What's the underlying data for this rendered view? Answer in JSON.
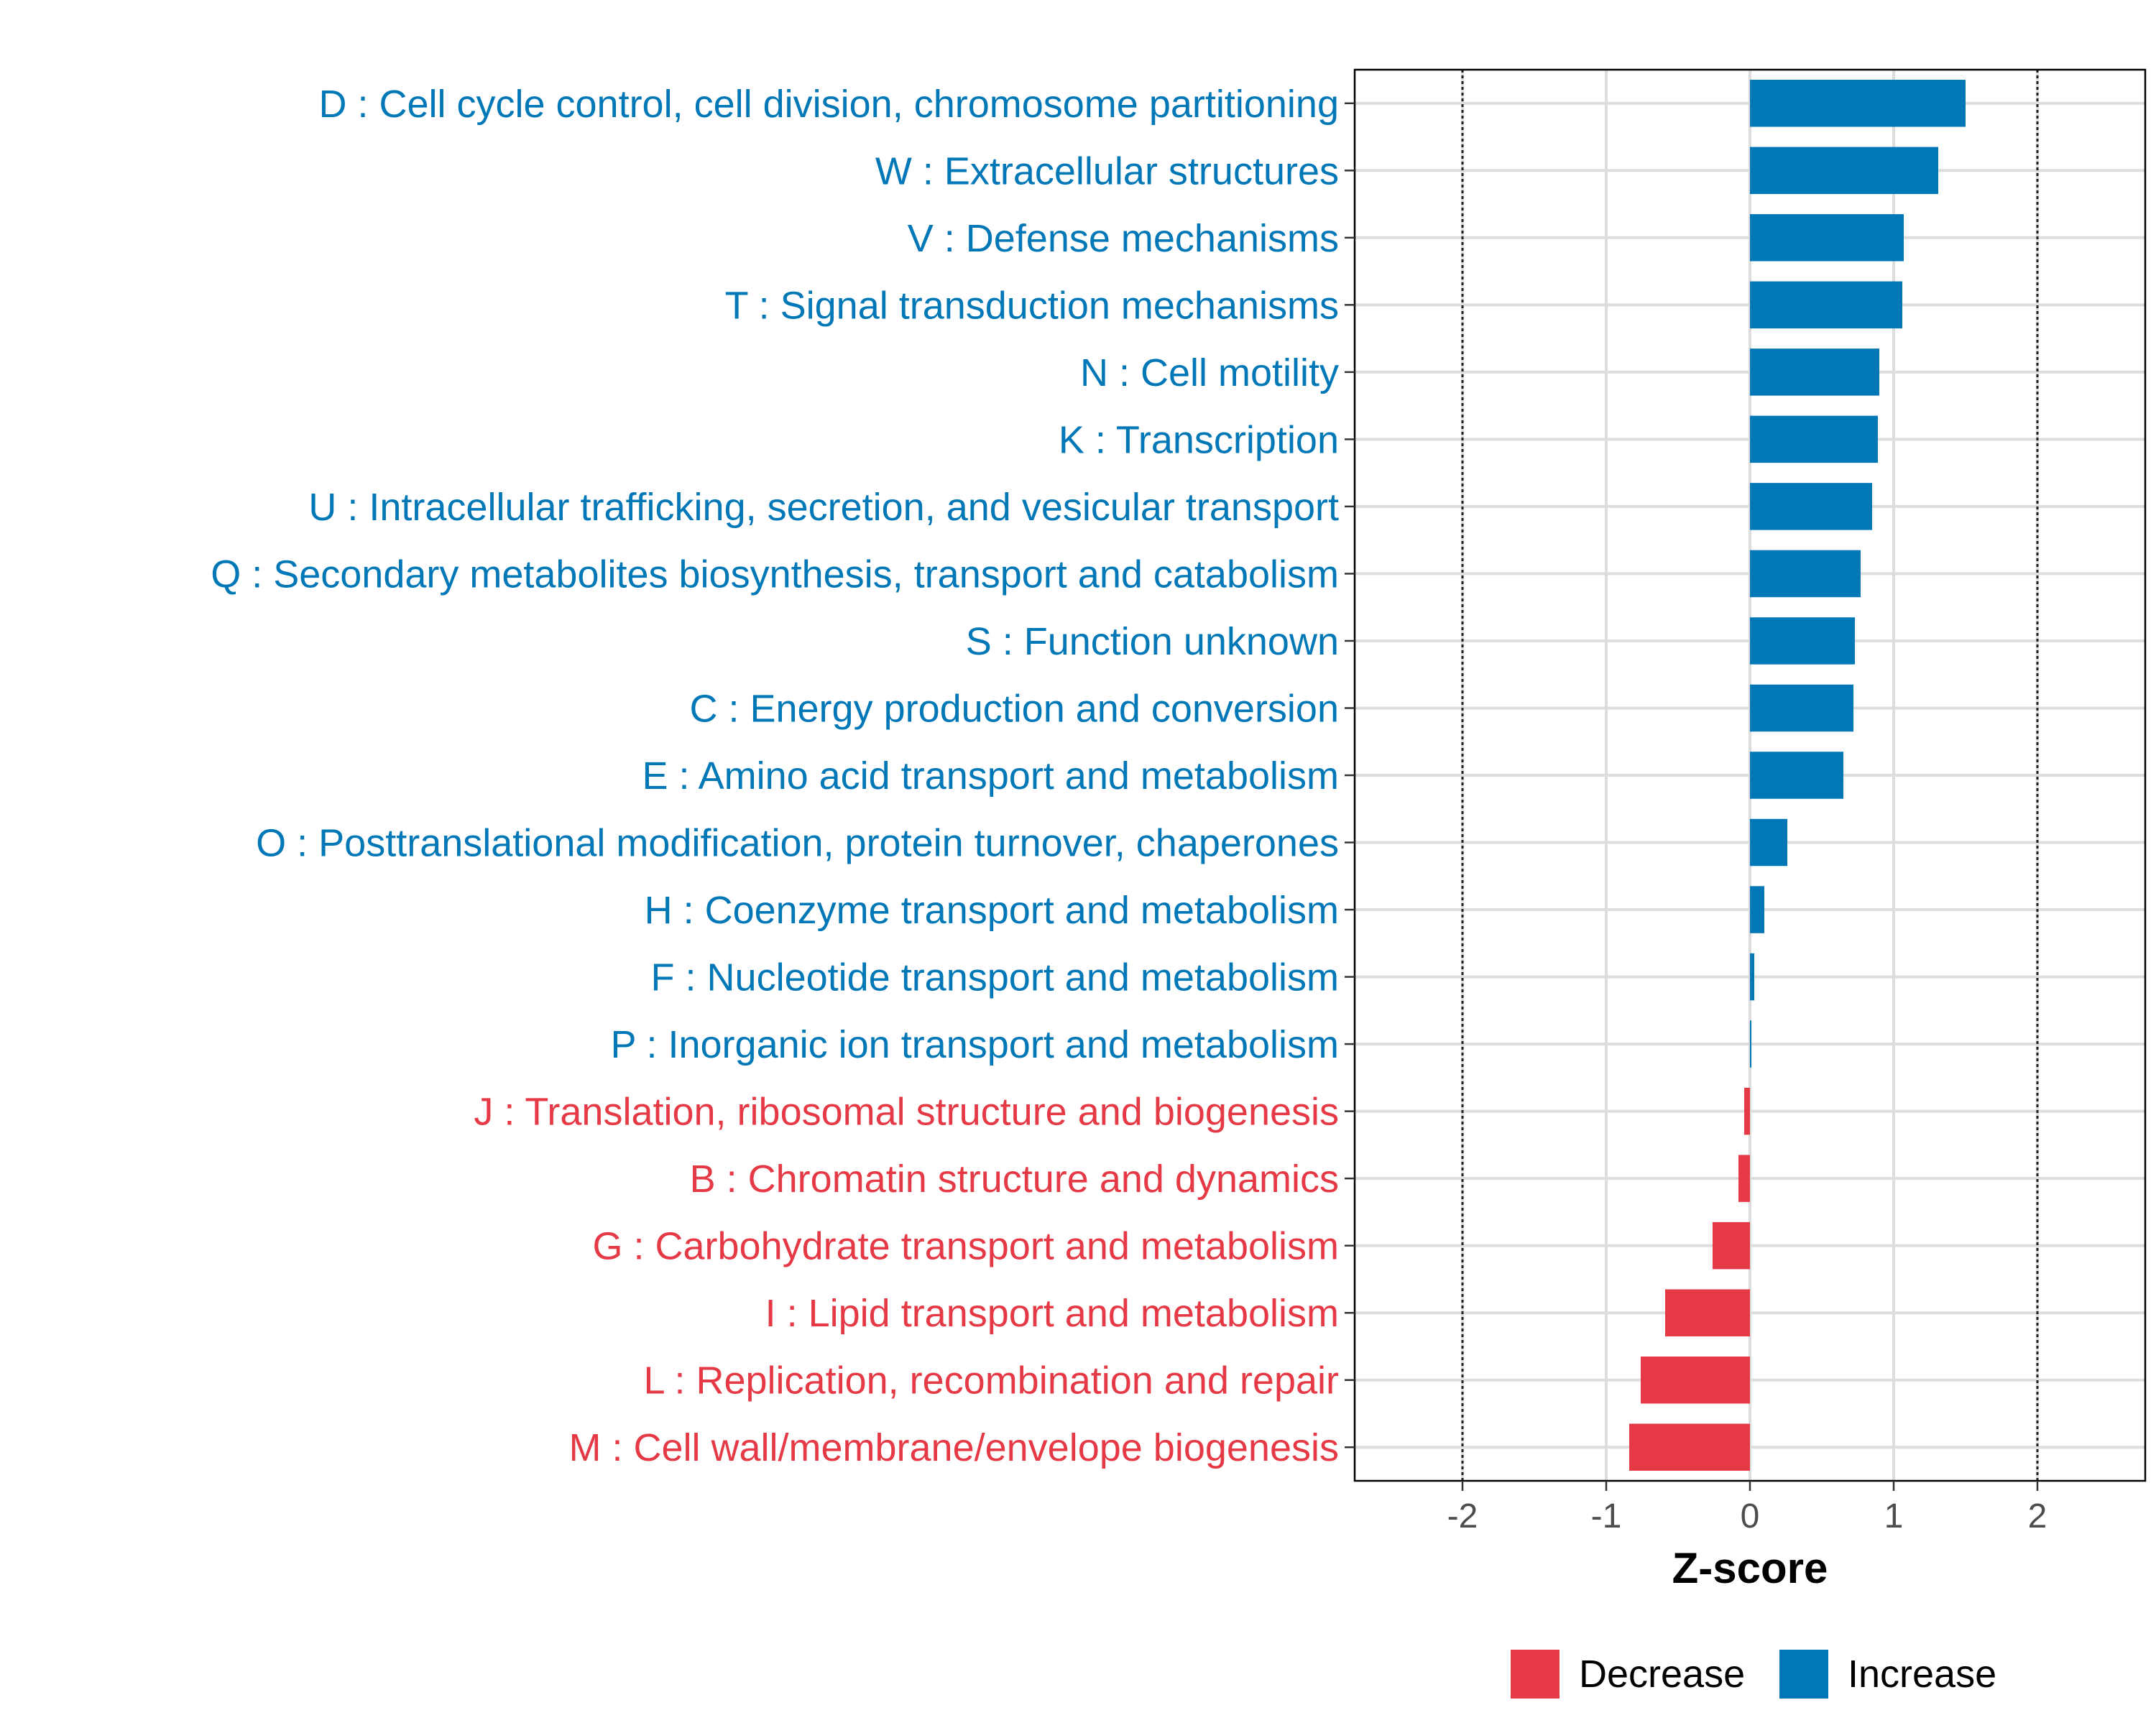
{
  "chart_data": {
    "type": "bar",
    "orientation": "horizontal",
    "xlabel": "Z-score",
    "xlim": [
      -2.75,
      2.75
    ],
    "xticks": [
      -2,
      -1,
      0,
      1,
      2
    ],
    "xtick_labels": [
      "-2",
      "-1",
      "0",
      "1",
      "2"
    ],
    "reference_lines": [
      -2,
      2
    ],
    "grid": true,
    "legend_position": "bottom",
    "colors": {
      "Decrease": "#E63946",
      "Increase": "#0077B6"
    },
    "legend": [
      {
        "label": "Decrease",
        "color": "#E63946"
      },
      {
        "label": "Increase",
        "color": "#0077B6"
      }
    ],
    "categories": [
      {
        "label": "D : Cell cycle control, cell division, chromosome partitioning",
        "value": 1.5,
        "group": "Increase"
      },
      {
        "label": "W : Extracellular structures",
        "value": 1.31,
        "group": "Increase"
      },
      {
        "label": "V : Defense mechanisms",
        "value": 1.07,
        "group": "Increase"
      },
      {
        "label": "T : Signal transduction mechanisms",
        "value": 1.06,
        "group": "Increase"
      },
      {
        "label": "N : Cell motility",
        "value": 0.9,
        "group": "Increase"
      },
      {
        "label": "K : Transcription",
        "value": 0.89,
        "group": "Increase"
      },
      {
        "label": "U : Intracellular trafficking, secretion, and vesicular transport",
        "value": 0.85,
        "group": "Increase"
      },
      {
        "label": "Q : Secondary metabolites biosynthesis, transport and catabolism",
        "value": 0.77,
        "group": "Increase"
      },
      {
        "label": "S : Function unknown",
        "value": 0.73,
        "group": "Increase"
      },
      {
        "label": "C : Energy production and conversion",
        "value": 0.72,
        "group": "Increase"
      },
      {
        "label": "E : Amino acid transport and metabolism",
        "value": 0.65,
        "group": "Increase"
      },
      {
        "label": "O : Posttranslational modification, protein turnover, chaperones",
        "value": 0.26,
        "group": "Increase"
      },
      {
        "label": "H : Coenzyme transport and metabolism",
        "value": 0.1,
        "group": "Increase"
      },
      {
        "label": "F : Nucleotide transport and metabolism",
        "value": 0.03,
        "group": "Increase"
      },
      {
        "label": "P : Inorganic ion transport and metabolism",
        "value": 0.01,
        "group": "Increase"
      },
      {
        "label": "J : Translation, ribosomal structure and biogenesis",
        "value": -0.04,
        "group": "Decrease"
      },
      {
        "label": "B : Chromatin structure and dynamics",
        "value": -0.08,
        "group": "Decrease"
      },
      {
        "label": "G : Carbohydrate transport and metabolism",
        "value": -0.26,
        "group": "Decrease"
      },
      {
        "label": "I : Lipid transport and metabolism",
        "value": -0.59,
        "group": "Decrease"
      },
      {
        "label": "L : Replication, recombination and repair",
        "value": -0.76,
        "group": "Decrease"
      },
      {
        "label": "M : Cell wall/membrane/envelope biogenesis",
        "value": -0.84,
        "group": "Decrease"
      }
    ]
  }
}
